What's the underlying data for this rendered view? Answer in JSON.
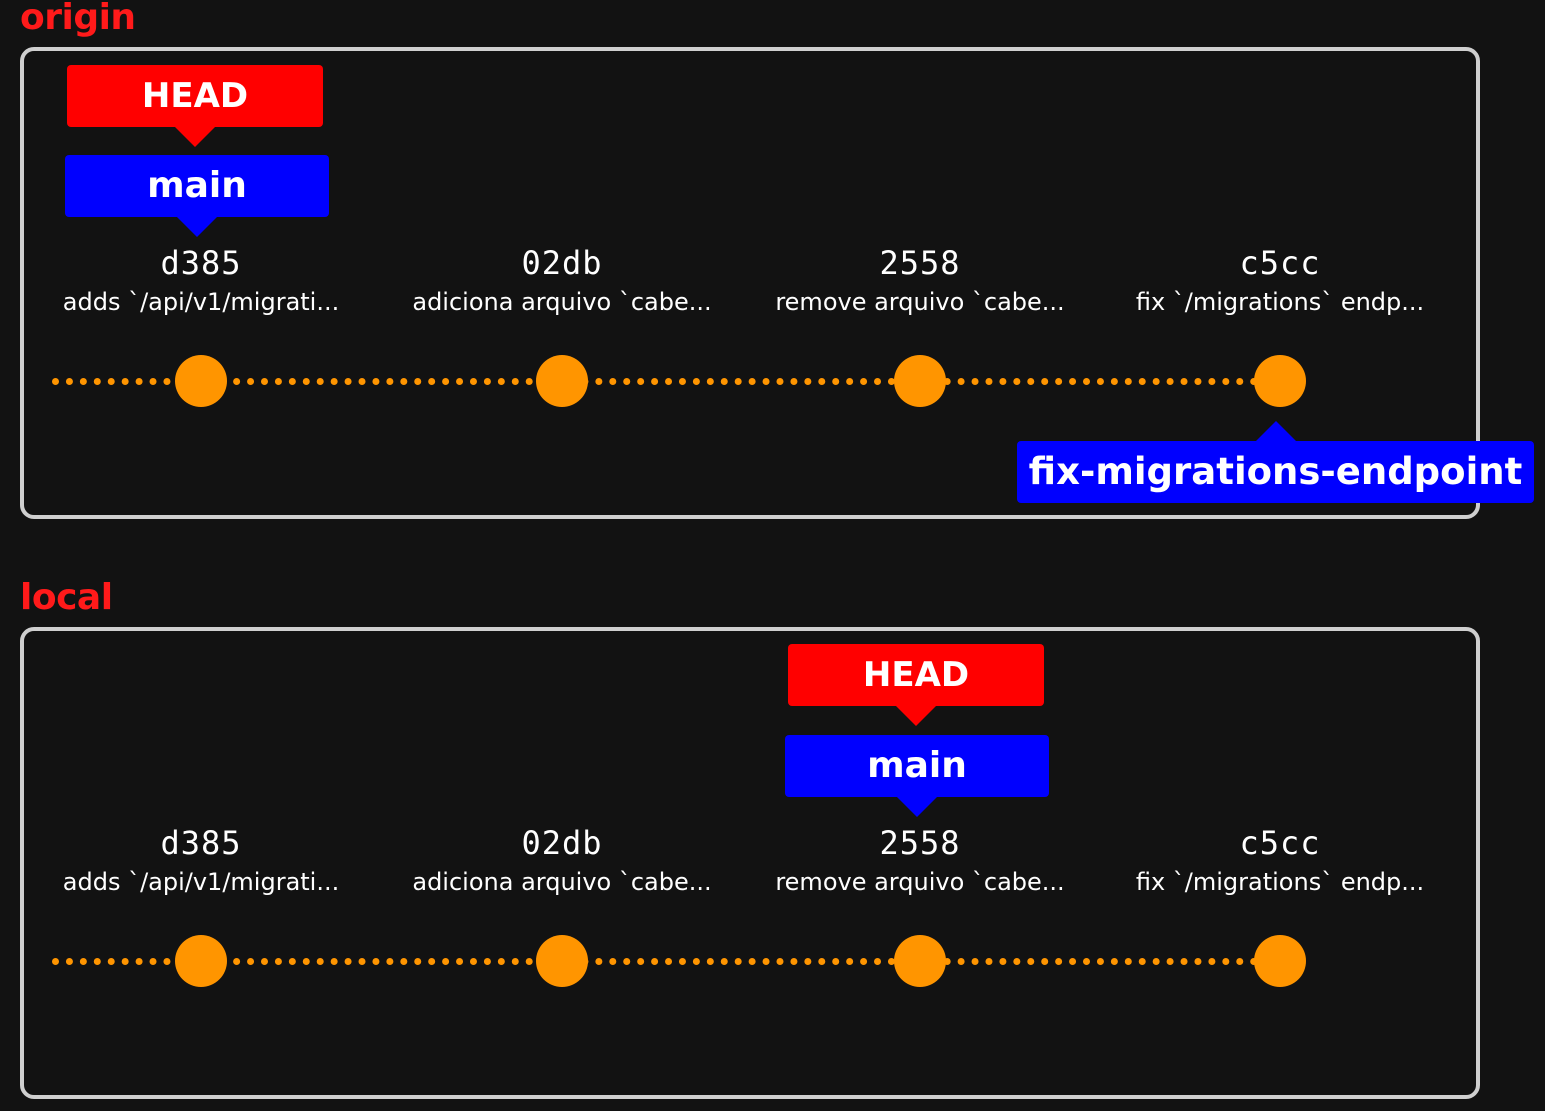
{
  "sections": {
    "origin": {
      "label": "origin",
      "head_label": "HEAD",
      "main_label": "main",
      "extra_branch_label": "fix-migrations-endpoint",
      "head_at": "d385",
      "main_at": "d385",
      "extra_branch_at": "c5cc"
    },
    "local": {
      "label": "local",
      "head_label": "HEAD",
      "main_label": "main",
      "head_at": "2558",
      "main_at": "2558"
    }
  },
  "commits": [
    {
      "hash": "d385",
      "message": "adds `/api/v1/migrati..."
    },
    {
      "hash": "02db",
      "message": "adiciona arquivo `cabe..."
    },
    {
      "hash": "2558",
      "message": "remove arquivo `cabe..."
    },
    {
      "hash": "c5cc",
      "message": "fix `/migrations` endp..."
    }
  ],
  "colors": {
    "background": "#121212",
    "section_label": "#ff1a1a",
    "box_border": "#cfcfcf",
    "commit": "#ff9500",
    "head_tag": "#ff0000",
    "branch_tag": "#0000ff",
    "text": "#ffffff"
  }
}
